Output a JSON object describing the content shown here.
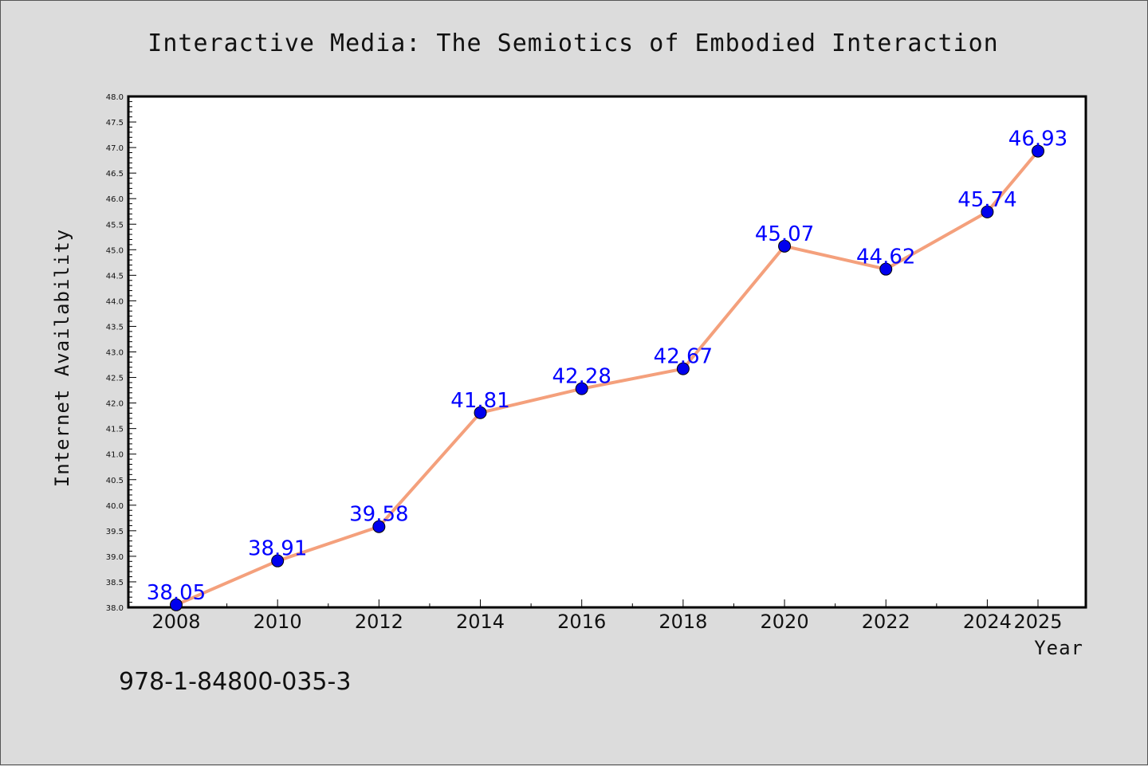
{
  "chart_data": {
    "type": "line",
    "title": "Interactive Media: The Semiotics of Embodied Interaction",
    "xlabel": "Year",
    "ylabel": "Internet Availability",
    "x": [
      2008,
      2010,
      2012,
      2014,
      2016,
      2018,
      2020,
      2022,
      2024,
      2025
    ],
    "x_tick_labels": [
      "2008",
      "2010",
      "2012",
      "2014",
      "2016",
      "2018",
      "2020",
      "2022",
      "2024",
      "2025"
    ],
    "series": [
      {
        "values": [
          38.05,
          38.91,
          39.58,
          41.81,
          42.28,
          42.67,
          45.07,
          44.62,
          45.74,
          46.93
        ],
        "data_labels": [
          "38.05",
          "38.91",
          "39.58",
          "41.81",
          "42.28",
          "42.67",
          "45.07",
          "44.62",
          "45.74",
          "46.93"
        ],
        "line_color": "#f4a07c",
        "marker_color": "#0000ee",
        "label_color": "#0000ff"
      }
    ],
    "ylim": [
      38.0,
      48.0
    ],
    "y_ticks": [
      "38.0",
      "38.5",
      "39.0",
      "39.5",
      "40.0",
      "40.5",
      "41.0",
      "41.5",
      "42.0",
      "42.5",
      "43.0",
      "43.5",
      "44.0",
      "44.5",
      "45.0",
      "45.5",
      "46.0",
      "46.5",
      "47.0",
      "47.5",
      "48.0"
    ],
    "grid": false,
    "legend": "none"
  },
  "annotation": {
    "isbn": "978-1-84800-035-3"
  },
  "colors": {
    "background": "#dcdcdc",
    "plot_background": "#ffffff",
    "axis": "#000000"
  }
}
